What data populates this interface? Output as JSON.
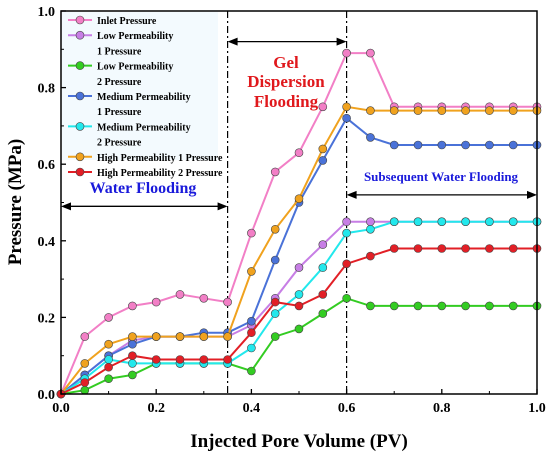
{
  "chart_data": {
    "type": "line",
    "xlabel": "Injected Pore Volume (PV)",
    "ylabel": "Pressure (MPa)",
    "xlim": [
      0,
      1.0
    ],
    "ylim": [
      0,
      1.0
    ],
    "xticks": [
      0.0,
      0.2,
      0.4,
      0.6,
      0.8,
      1.0
    ],
    "yticks": [
      0.0,
      0.2,
      0.4,
      0.6,
      0.8,
      1.0
    ],
    "xtick_labels": [
      "0.0",
      "0.2",
      "0.4",
      "0.6",
      "0.8",
      "1.0"
    ],
    "ytick_labels": [
      "0.0",
      "0.2",
      "0.4",
      "0.6",
      "0.8",
      "1.0"
    ],
    "grid": false,
    "legend_position": "top-left",
    "phase_boundaries": [
      0.35,
      0.6
    ],
    "annotations": {
      "water_flooding": "Water Flooding",
      "gel_line1": "Gel",
      "gel_line2": "Dispersion",
      "gel_line3": "Flooding",
      "subsequent": "Subsequent Water Flooding"
    },
    "series": [
      {
        "name": "Inlet Pressure",
        "legend_lines": [
          "Inlet Pressure"
        ],
        "color": "#f27fc6",
        "x": [
          0,
          0.05,
          0.1,
          0.15,
          0.2,
          0.25,
          0.3,
          0.35,
          0.4,
          0.45,
          0.5,
          0.55,
          0.6,
          0.65,
          0.7,
          0.75,
          0.8,
          0.85,
          0.9,
          0.95,
          1.0
        ],
        "values": [
          0,
          0.15,
          0.2,
          0.23,
          0.24,
          0.26,
          0.25,
          0.24,
          0.42,
          0.58,
          0.63,
          0.75,
          0.89,
          0.89,
          0.75,
          0.75,
          0.75,
          0.75,
          0.75,
          0.75,
          0.75
        ]
      },
      {
        "name": "Low Permeability 1 Pressure",
        "legend_lines": [
          "Low Permeability",
          "1 Pressure"
        ],
        "color": "#c77ee5",
        "x": [
          0,
          0.05,
          0.1,
          0.15,
          0.2,
          0.25,
          0.3,
          0.35,
          0.4,
          0.45,
          0.5,
          0.55,
          0.6,
          0.65,
          0.7,
          0.75,
          0.8,
          0.85,
          0.9,
          0.95,
          1.0
        ],
        "values": [
          0,
          0.05,
          0.1,
          0.14,
          0.15,
          0.15,
          0.15,
          0.15,
          0.18,
          0.25,
          0.33,
          0.39,
          0.45,
          0.45,
          0.45,
          0.45,
          0.45,
          0.45,
          0.45,
          0.45,
          0.45
        ]
      },
      {
        "name": "Low Permeability 2 Pressure",
        "legend_lines": [
          "Low Permeability",
          "2 Pressure"
        ],
        "color": "#33cc22",
        "x": [
          0,
          0.05,
          0.1,
          0.15,
          0.2,
          0.25,
          0.3,
          0.35,
          0.4,
          0.45,
          0.5,
          0.55,
          0.6,
          0.65,
          0.7,
          0.75,
          0.8,
          0.85,
          0.9,
          0.95,
          1.0
        ],
        "values": [
          0,
          0.01,
          0.04,
          0.05,
          0.08,
          0.08,
          0.08,
          0.08,
          0.06,
          0.15,
          0.17,
          0.21,
          0.25,
          0.23,
          0.23,
          0.23,
          0.23,
          0.23,
          0.23,
          0.23,
          0.23
        ]
      },
      {
        "name": "Medium Permeability 1 Pressure",
        "legend_lines": [
          "Medium Permeability",
          "1 Pressure"
        ],
        "color": "#4a72d8",
        "x": [
          0,
          0.05,
          0.1,
          0.15,
          0.2,
          0.25,
          0.3,
          0.35,
          0.4,
          0.45,
          0.5,
          0.55,
          0.6,
          0.65,
          0.7,
          0.75,
          0.8,
          0.85,
          0.9,
          0.95,
          1.0
        ],
        "values": [
          0,
          0.05,
          0.1,
          0.13,
          0.15,
          0.15,
          0.16,
          0.16,
          0.19,
          0.35,
          0.5,
          0.61,
          0.72,
          0.67,
          0.65,
          0.65,
          0.65,
          0.65,
          0.65,
          0.65,
          0.65
        ]
      },
      {
        "name": "Medium Permeability 2 Pressure",
        "legend_lines": [
          "Medium Permeability",
          "2 Pressure"
        ],
        "color": "#22e8ec",
        "x": [
          0,
          0.05,
          0.1,
          0.15,
          0.2,
          0.25,
          0.3,
          0.35,
          0.4,
          0.45,
          0.5,
          0.55,
          0.6,
          0.65,
          0.7,
          0.75,
          0.8,
          0.85,
          0.9,
          0.95,
          1.0
        ],
        "values": [
          0,
          0.04,
          0.09,
          0.08,
          0.08,
          0.08,
          0.08,
          0.08,
          0.12,
          0.21,
          0.26,
          0.33,
          0.42,
          0.43,
          0.45,
          0.45,
          0.45,
          0.45,
          0.45,
          0.45,
          0.45
        ]
      },
      {
        "name": "High Permeability 1 Pressure",
        "legend_lines": [
          "High Permeability 1 Pressure"
        ],
        "color": "#f0a21e",
        "x": [
          0,
          0.05,
          0.1,
          0.15,
          0.2,
          0.25,
          0.3,
          0.35,
          0.4,
          0.45,
          0.5,
          0.55,
          0.6,
          0.65,
          0.7,
          0.75,
          0.8,
          0.85,
          0.9,
          0.95,
          1.0
        ],
        "values": [
          0,
          0.08,
          0.13,
          0.15,
          0.15,
          0.15,
          0.15,
          0.15,
          0.32,
          0.43,
          0.51,
          0.64,
          0.75,
          0.74,
          0.74,
          0.74,
          0.74,
          0.74,
          0.74,
          0.74,
          0.74
        ]
      },
      {
        "name": "High Permeability 2 Pressure",
        "legend_lines": [
          "High Permeability 2 Pressure"
        ],
        "color": "#e21f26",
        "x": [
          0,
          0.05,
          0.1,
          0.15,
          0.2,
          0.25,
          0.3,
          0.35,
          0.4,
          0.45,
          0.5,
          0.55,
          0.6,
          0.65,
          0.7,
          0.75,
          0.8,
          0.85,
          0.9,
          0.95,
          1.0
        ],
        "values": [
          0,
          0.03,
          0.07,
          0.1,
          0.09,
          0.09,
          0.09,
          0.09,
          0.16,
          0.24,
          0.23,
          0.26,
          0.34,
          0.36,
          0.38,
          0.38,
          0.38,
          0.38,
          0.38,
          0.38,
          0.38
        ]
      }
    ]
  },
  "colors": {
    "annotation_blue": "#1a1adb",
    "annotation_red": "#e0181c",
    "legend_bg": "#f3fafe"
  }
}
